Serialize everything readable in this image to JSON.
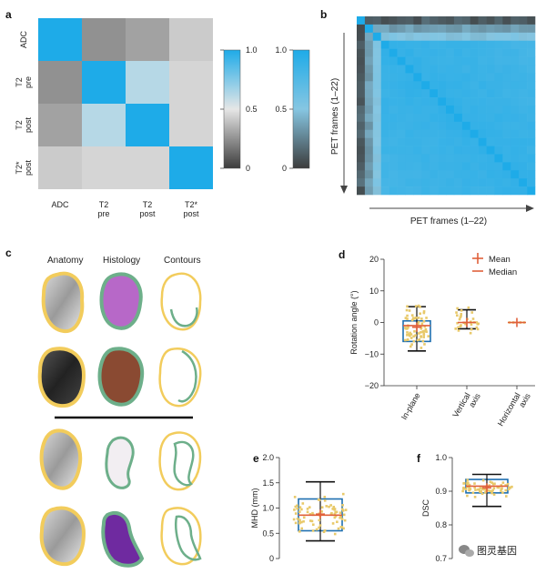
{
  "panels": {
    "a": "a",
    "b": "b",
    "c": "c",
    "d": "d",
    "e": "e",
    "f": "f"
  },
  "watermark": {
    "text": "图灵基因",
    "icon": "wechat-icon"
  },
  "colors": {
    "accent": "#1eabe8",
    "box": "#1e6fb0",
    "points": "#e8c96a",
    "mean": "#e0603a",
    "gray_low": "#3c3c3c",
    "gray_mid": "#e6e6e6",
    "anatomy_outline": "#f2cc5c",
    "histology_outline": "#6daf8a"
  },
  "chart_data": [
    {
      "panel": "a",
      "type": "heatmap",
      "rows": [
        "ADC",
        "T2 pre",
        "T2 post",
        "T2* post"
      ],
      "cols": [
        "ADC",
        "T2 pre",
        "T2 post",
        "T2* post"
      ],
      "row_labels": [
        [
          "ADC"
        ],
        [
          "T2",
          "pre"
        ],
        [
          "T2",
          "post"
        ],
        [
          "T2*",
          "post"
        ]
      ],
      "col_labels": [
        [
          "ADC"
        ],
        [
          "T2",
          "pre"
        ],
        [
          "T2",
          "post"
        ],
        [
          "T2*",
          "post"
        ]
      ],
      "values": [
        [
          1.0,
          0.25,
          0.3,
          0.42
        ],
        [
          0.25,
          1.0,
          0.62,
          0.45
        ],
        [
          0.3,
          0.62,
          1.0,
          0.45
        ],
        [
          0.42,
          0.45,
          0.45,
          1.0
        ]
      ],
      "colorbars": [
        {
          "ticks": [
            "1.0",
            "0.5",
            "0"
          ],
          "range": [
            0,
            1
          ]
        },
        {
          "ticks": [
            "1.0",
            "0.5",
            "0"
          ],
          "range": [
            0,
            1
          ]
        }
      ]
    },
    {
      "panel": "b",
      "type": "heatmap",
      "n_frames": 22,
      "xlabel": "PET frames (1–22)",
      "ylabel": "PET frames (1–22)"
    },
    {
      "panel": "d",
      "type": "box",
      "ylabel": "Rotation angle (°)",
      "ylim": [
        -20,
        20
      ],
      "yticks": [
        "20",
        "10",
        "0",
        "−10",
        "−20"
      ],
      "categories": [
        "In-plane",
        "Vertical axis",
        "Horizontal axis"
      ],
      "legend": [
        "Mean",
        "Median"
      ],
      "stats": [
        {
          "q1": -6,
          "median": -1,
          "q3": 0.5,
          "wlow": -9,
          "whigh": 5,
          "mean": -1.5
        },
        {
          "median": 0,
          "wlow": -2,
          "whigh": 4,
          "mean": 0
        },
        {
          "median": 0,
          "wlow": 0,
          "whigh": 0,
          "mean": 0
        }
      ]
    },
    {
      "panel": "e",
      "type": "box",
      "ylabel": "MHD (mm)",
      "ylim": [
        0,
        2.0
      ],
      "yticks": [
        "2.0",
        "1.5",
        "1.0",
        "0.5",
        "0"
      ],
      "stats": {
        "q1": 0.55,
        "median": 0.86,
        "q3": 1.18,
        "wlow": 0.35,
        "whigh": 1.52,
        "mean": 0.88
      }
    },
    {
      "panel": "f",
      "type": "box",
      "ylabel": "DSC",
      "ylim": [
        0.7,
        1.0
      ],
      "yticks": [
        "1.0",
        "0.9",
        "0.8",
        "0.7"
      ],
      "stats": {
        "q1": 0.895,
        "median": 0.915,
        "q3": 0.935,
        "wlow": 0.855,
        "whigh": 0.95,
        "mean": 0.91
      }
    }
  ],
  "panel_c": {
    "headers": [
      "Anatomy",
      "Histology",
      "Contours"
    ]
  }
}
